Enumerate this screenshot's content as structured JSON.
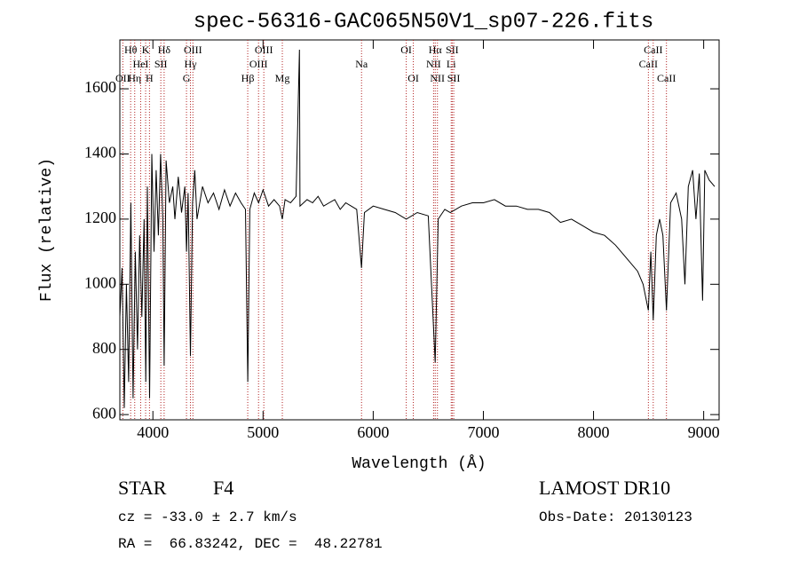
{
  "chart_data": {
    "type": "line",
    "title": "spec-56316-GAC065N50V1_sp07-226.fits",
    "xlabel": "Wavelength (Å)",
    "ylabel": "Flux (relative)",
    "xlim": [
      3700,
      9140
    ],
    "ylim": [
      584,
      1750
    ],
    "xticks": [
      4000,
      5000,
      6000,
      7000,
      8000,
      9000
    ],
    "yticks": [
      600,
      800,
      1000,
      1200,
      1400,
      1600
    ],
    "color": "#000000",
    "line_color": "#b22222",
    "x": [
      3700,
      3720,
      3740,
      3760,
      3780,
      3800,
      3820,
      3840,
      3860,
      3880,
      3900,
      3920,
      3935,
      3950,
      3970,
      3990,
      4010,
      4030,
      4050,
      4070,
      4090,
      4102,
      4120,
      4150,
      4180,
      4200,
      4230,
      4260,
      4290,
      4305,
      4320,
      4341,
      4360,
      4380,
      4400,
      4450,
      4500,
      4550,
      4600,
      4650,
      4700,
      4750,
      4800,
      4840,
      4861,
      4880,
      4920,
      4960,
      5000,
      5050,
      5100,
      5150,
      5175,
      5200,
      5250,
      5300,
      5330,
      5335,
      5400,
      5450,
      5500,
      5550,
      5600,
      5650,
      5700,
      5750,
      5800,
      5850,
      5894,
      5920,
      6000,
      6100,
      6200,
      6300,
      6400,
      6500,
      6563,
      6590,
      6650,
      6700,
      6800,
      6900,
      7000,
      7100,
      7200,
      7300,
      7400,
      7500,
      7600,
      7700,
      7800,
      7900,
      8000,
      8100,
      8200,
      8300,
      8400,
      8450,
      8498,
      8520,
      8542,
      8570,
      8600,
      8630,
      8662,
      8700,
      8750,
      8800,
      8830,
      8860,
      8900,
      8930,
      8960,
      8990,
      9010,
      9050,
      9100
    ],
    "values": [
      900,
      1050,
      620,
      1000,
      700,
      1250,
      650,
      1100,
      800,
      1150,
      900,
      1200,
      700,
      1300,
      650,
      1400,
      1100,
      1350,
      1150,
      1400,
      1200,
      750,
      1380,
      1250,
      1300,
      1200,
      1330,
      1220,
      1300,
      1100,
      1280,
      780,
      1250,
      1350,
      1200,
      1300,
      1250,
      1280,
      1230,
      1290,
      1240,
      1280,
      1250,
      1230,
      700,
      1230,
      1280,
      1250,
      1290,
      1240,
      1260,
      1240,
      1200,
      1260,
      1250,
      1270,
      1720,
      1240,
      1260,
      1250,
      1270,
      1240,
      1250,
      1260,
      1230,
      1250,
      1240,
      1230,
      1050,
      1220,
      1240,
      1230,
      1220,
      1200,
      1220,
      1210,
      760,
      1200,
      1230,
      1220,
      1240,
      1250,
      1250,
      1260,
      1240,
      1240,
      1230,
      1230,
      1220,
      1190,
      1200,
      1180,
      1160,
      1150,
      1120,
      1080,
      1040,
      1000,
      920,
      1100,
      890,
      1150,
      1200,
      1150,
      920,
      1250,
      1280,
      1200,
      1000,
      1300,
      1350,
      1200,
      1340,
      950,
      1350,
      1320,
      1300
    ],
    "lines": [
      {
        "label": "OII",
        "x": 3727
      },
      {
        "label": "Hθ",
        "x": 3798
      },
      {
        "label": "Hη",
        "x": 3835
      },
      {
        "label": "HeI",
        "x": 3889
      },
      {
        "label": "K",
        "x": 3934
      },
      {
        "label": "H",
        "x": 3969
      },
      {
        "label": "SII",
        "x": 4072
      },
      {
        "label": "Hδ",
        "x": 4102
      },
      {
        "label": "G",
        "x": 4305
      },
      {
        "label": "Hγ",
        "x": 4341
      },
      {
        "label": "OIII",
        "x": 4363
      },
      {
        "label": "Hβ",
        "x": 4861
      },
      {
        "label": "OIII",
        "x": 4959
      },
      {
        "label": "OIII",
        "x": 5007
      },
      {
        "label": "Mg",
        "x": 5175
      },
      {
        "label": "Na",
        "x": 5894
      },
      {
        "label": "OI",
        "x": 6300
      },
      {
        "label": "OI",
        "x": 6364
      },
      {
        "label": "NII",
        "x": 6548
      },
      {
        "label": "Hα",
        "x": 6563
      },
      {
        "label": "NII",
        "x": 6583
      },
      {
        "label": "Li",
        "x": 6708
      },
      {
        "label": "SII",
        "x": 6717
      },
      {
        "label": "SII",
        "x": 6731
      },
      {
        "label": "CaII",
        "x": 8498
      },
      {
        "label": "CaII",
        "x": 8542
      },
      {
        "label": "CaII",
        "x": 8662
      }
    ],
    "info": {
      "class": "STAR",
      "subclass": "F4",
      "cz": "cz = -33.0 ± 2.7 km/s",
      "coords": "RA =  66.83242, DEC =  48.22781",
      "release": "LAMOST DR10",
      "obs_date": "Obs-Date: 20130123"
    }
  }
}
